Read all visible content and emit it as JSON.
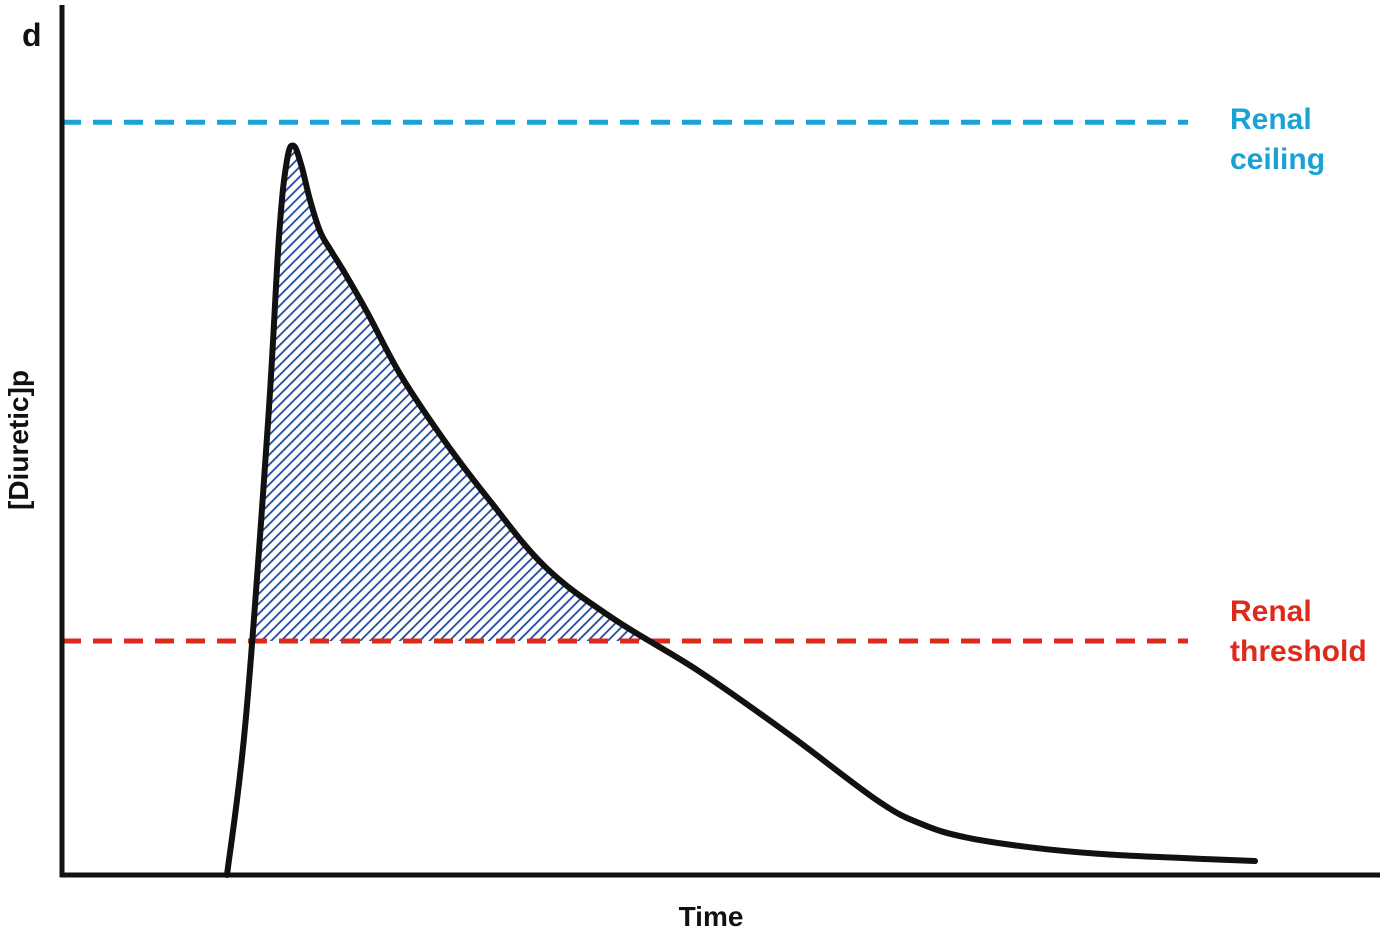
{
  "panel_label": "d",
  "chart_data": {
    "type": "line",
    "title": "",
    "xlabel": "Time",
    "ylabel": "[Diuretic]p",
    "xlim": [
      0,
      100
    ],
    "ylim": [
      0,
      100
    ],
    "grid": false,
    "ticks": false,
    "series": [
      {
        "x": [
          7.3,
          9.0,
          11.0,
          12.0,
          12.7,
          13.3,
          14.0,
          14.8,
          15.7,
          16.7,
          18.0,
          20.0,
          23.0,
          27.0,
          31.0,
          36.0,
          42.0,
          50.0,
          58.0,
          66.0,
          70.0,
          74.0,
          80.0,
          86.0,
          93.0,
          100.0
        ],
        "y": [
          0.0,
          20.0,
          58.0,
          82.0,
          91.5,
          93.5,
          91.0,
          86.5,
          82.5,
          80.0,
          77.0,
          72.0,
          64.0,
          55.5,
          48.0,
          39.5,
          33.0,
          26.0,
          18.0,
          9.5,
          6.5,
          4.8,
          3.5,
          2.7,
          2.2,
          1.8
        ]
      }
    ],
    "reference_lines": [
      {
        "name": "Renal ceiling",
        "label_lines": [
          "Renal",
          "ceiling"
        ],
        "y": 96.5,
        "color": "#1aa2d4",
        "style": "dashed"
      },
      {
        "name": "Renal threshold",
        "label_lines": [
          "Renal",
          "threshold"
        ],
        "y": 30.0,
        "color": "#dd2a1b",
        "style": "dashed"
      }
    ],
    "shaded_region": {
      "description_visible": false,
      "between": "curve and Renal threshold",
      "pattern": "diagonal-hatch",
      "color": "#1f4aa0"
    },
    "colors": {
      "curve": "#111111",
      "axes": "#111111"
    }
  }
}
